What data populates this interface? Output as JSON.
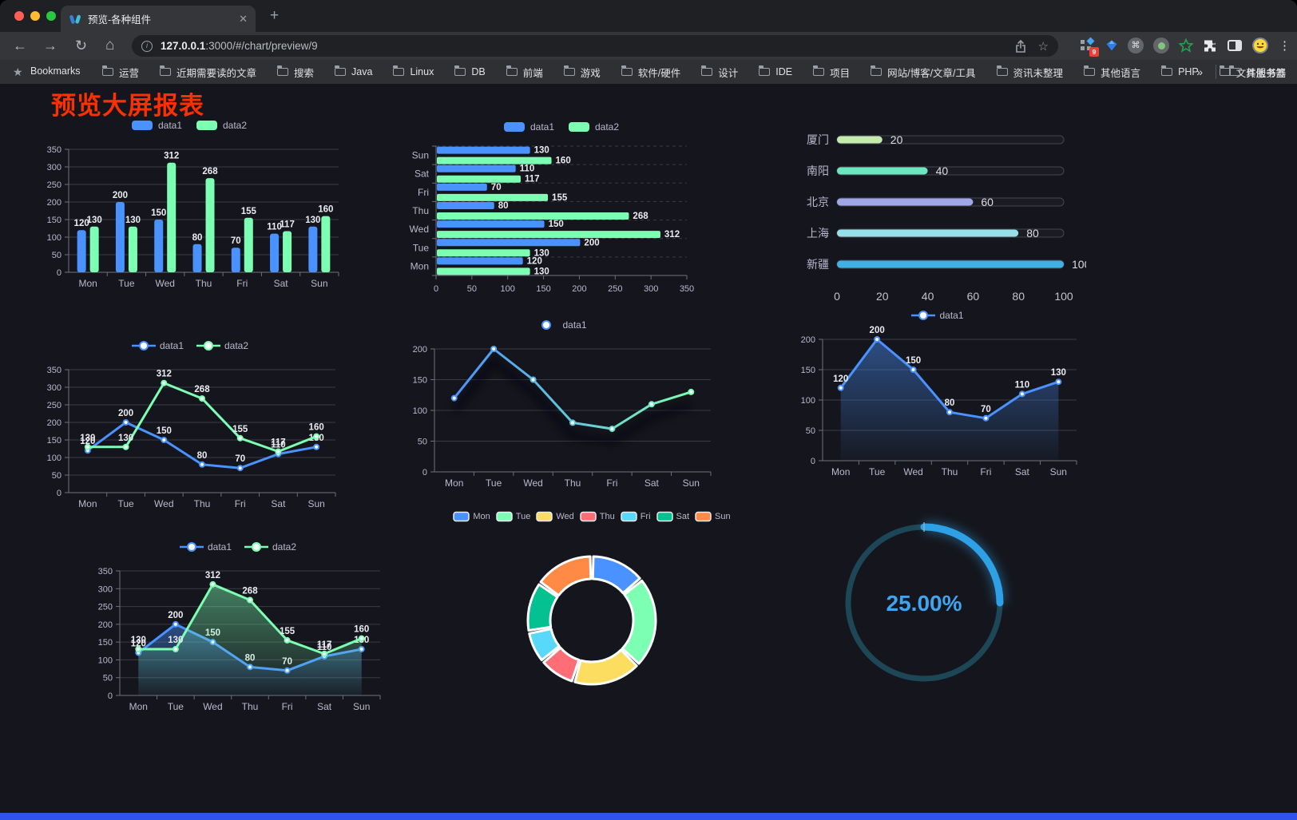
{
  "browser": {
    "tab_title": "预览-各种组件",
    "new_tab_label": "+",
    "close_label": "✕",
    "url_host": "127.0.0.1",
    "url_rest": ":3000/#/chart/preview/9",
    "extension_badge": "9",
    "bookmarks_label": "Bookmarks",
    "bookmarks": [
      "运营",
      "近期需要读的文章",
      "搜索",
      "Java",
      "Linux",
      "DB",
      "前端",
      "游戏",
      "软件/硬件",
      "设计",
      "IDE",
      "项目",
      "网站/博客/文章/工具",
      "资讯未整理",
      "其他语言",
      "PHP",
      "文件服务器"
    ],
    "bookmarks_overflow": "»",
    "other_bookmarks": "其他书签"
  },
  "page": {
    "title": "预览大屏报表",
    "title_color": "#fe3000",
    "background": "#15161d",
    "footer_color": "#2f54eb"
  },
  "chart_data": [
    {
      "id": "bar-grouped",
      "type": "bar",
      "categories": [
        "Mon",
        "Tue",
        "Wed",
        "Thu",
        "Fri",
        "Sat",
        "Sun"
      ],
      "series": [
        {
          "name": "data1",
          "color": "#4992ff",
          "values": [
            120,
            200,
            150,
            80,
            70,
            110,
            130
          ]
        },
        {
          "name": "data2",
          "color": "#7cffb2",
          "values": [
            130,
            130,
            312,
            268,
            155,
            117,
            160
          ]
        }
      ],
      "ylim": [
        0,
        350
      ],
      "ystep": 50,
      "grid": true,
      "legend_position": "top",
      "show_labels": true
    },
    {
      "id": "bar-horizontal",
      "type": "hbar",
      "categories": [
        "Mon",
        "Tue",
        "Wed",
        "Thu",
        "Fri",
        "Sat",
        "Sun"
      ],
      "series": [
        {
          "name": "data1",
          "color": "#4992ff",
          "values": [
            120,
            200,
            150,
            80,
            70,
            110,
            130
          ]
        },
        {
          "name": "data2",
          "color": "#7cffb2",
          "values": [
            130,
            130,
            312,
            268,
            155,
            117,
            160
          ]
        }
      ],
      "xlim": [
        0,
        350
      ],
      "xstep": 50,
      "legend_position": "top",
      "show_labels": true
    },
    {
      "id": "city-progress",
      "type": "progress",
      "categories": [
        "厦门",
        "南阳",
        "北京",
        "上海",
        "新疆"
      ],
      "values": [
        20,
        40,
        60,
        80,
        100
      ],
      "colors": [
        "#c4ebad",
        "#6be6c1",
        "#a0a7e6",
        "#96dee8",
        "#3fb1e3"
      ],
      "xlim": [
        0,
        100
      ],
      "xticks": [
        0,
        20,
        40,
        60,
        80,
        100
      ]
    },
    {
      "id": "line-grouped",
      "type": "line",
      "area": false,
      "categories": [
        "Mon",
        "Tue",
        "Wed",
        "Thu",
        "Fri",
        "Sat",
        "Sun"
      ],
      "series": [
        {
          "name": "data1",
          "color": "#4992ff",
          "values": [
            120,
            200,
            150,
            80,
            70,
            110,
            130
          ]
        },
        {
          "name": "data2",
          "color": "#7cffb2",
          "values": [
            130,
            130,
            312,
            268,
            155,
            117,
            160
          ]
        }
      ],
      "ylim": [
        0,
        350
      ],
      "ystep": 50,
      "show_labels": true,
      "legend_position": "top"
    },
    {
      "id": "line-gradient",
      "type": "line-gradient",
      "categories": [
        "Mon",
        "Tue",
        "Wed",
        "Thu",
        "Fri",
        "Sat",
        "Sun"
      ],
      "series": [
        {
          "name": "data1",
          "values": [
            120,
            200,
            150,
            80,
            70,
            110,
            130
          ]
        }
      ],
      "gradient": [
        "#4992ff",
        "#7cffb2"
      ],
      "ylim": [
        0,
        200
      ],
      "ystep": 50,
      "show_labels": false,
      "legend_position": "top"
    },
    {
      "id": "line-area",
      "type": "line",
      "area": true,
      "categories": [
        "Mon",
        "Tue",
        "Wed",
        "Thu",
        "Fri",
        "Sat",
        "Sun"
      ],
      "series": [
        {
          "name": "data1",
          "color": "#4992ff",
          "values": [
            120,
            200,
            150,
            80,
            70,
            110,
            130
          ]
        }
      ],
      "ylim": [
        0,
        200
      ],
      "ystep": 50,
      "show_labels": true,
      "legend_position": "top"
    },
    {
      "id": "line-grouped-area",
      "type": "line",
      "area": true,
      "categories": [
        "Mon",
        "Tue",
        "Wed",
        "Thu",
        "Fri",
        "Sat",
        "Sun"
      ],
      "series": [
        {
          "name": "data1",
          "color": "#4992ff",
          "values": [
            120,
            200,
            150,
            80,
            70,
            110,
            130
          ]
        },
        {
          "name": "data2",
          "color": "#7cffb2",
          "values": [
            130,
            130,
            312,
            268,
            155,
            117,
            160
          ]
        }
      ],
      "ylim": [
        0,
        350
      ],
      "ystep": 50,
      "show_labels": true,
      "legend_position": "top"
    },
    {
      "id": "donut",
      "type": "pie",
      "categories": [
        "Mon",
        "Tue",
        "Wed",
        "Thu",
        "Fri",
        "Sat",
        "Sun"
      ],
      "values": [
        120,
        200,
        150,
        80,
        70,
        110,
        130
      ],
      "colors": [
        "#4992ff",
        "#7cffb2",
        "#fddd60",
        "#ff6e76",
        "#58d9f9",
        "#05c091",
        "#ff8a45"
      ],
      "legend_position": "top"
    },
    {
      "id": "gauge",
      "type": "gauge",
      "value": 25,
      "max": 100,
      "label": "25.00%",
      "color": "#2da0e6",
      "track_color": "#1d4756",
      "text_color": "#3fa5ee"
    }
  ]
}
